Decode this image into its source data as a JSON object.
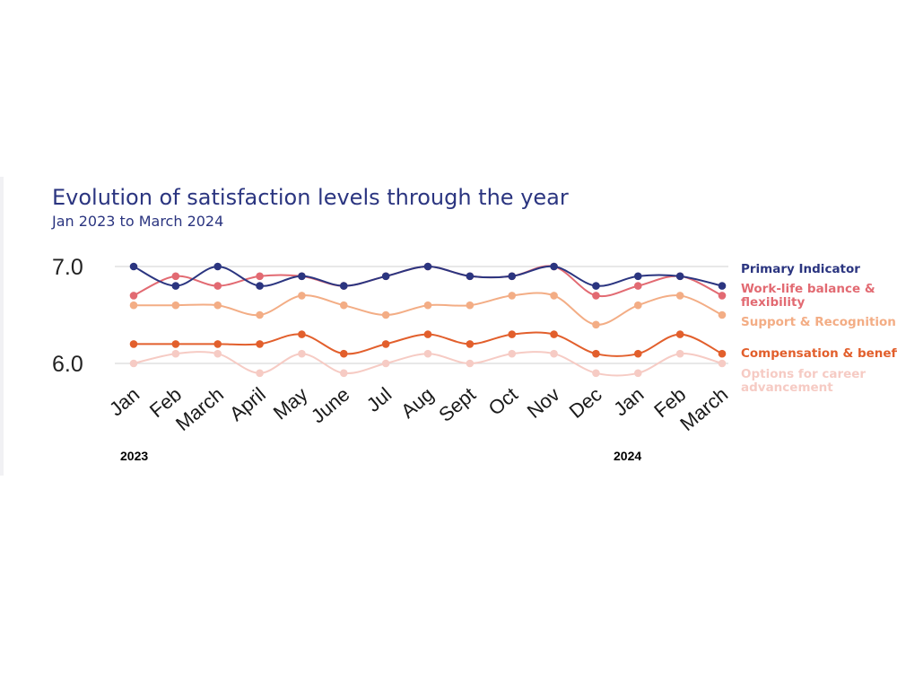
{
  "title": "Evolution of satisfaction levels through the year",
  "subtitle": "Jan 2023 to March 2024",
  "chart_data": {
    "type": "line",
    "categories": [
      "Jan",
      "Feb",
      "March",
      "April",
      "May",
      "June",
      "Jul",
      "Aug",
      "Sept",
      "Oct",
      "Nov",
      "Dec",
      "Jan",
      "Feb",
      "March"
    ],
    "year_labels": [
      "2023",
      "2024"
    ],
    "ylim": [
      6.0,
      7.0
    ],
    "y_ticks": [
      "6.0",
      "7.0"
    ],
    "grid": true,
    "legend_position": "right",
    "series": [
      {
        "name": "Options for career advancement",
        "color": "#f6cbc4",
        "values": [
          6.0,
          6.1,
          6.1,
          5.9,
          6.1,
          5.9,
          6.0,
          6.1,
          6.0,
          6.1,
          6.1,
          5.9,
          5.9,
          6.1,
          6.0
        ]
      },
      {
        "name": "Compensation & benefits",
        "color": "#e25f2c",
        "values": [
          6.2,
          6.2,
          6.2,
          6.2,
          6.3,
          6.1,
          6.2,
          6.3,
          6.2,
          6.3,
          6.3,
          6.1,
          6.1,
          6.3,
          6.1
        ]
      },
      {
        "name": "Support & Recognition",
        "color": "#f3ad85",
        "values": [
          6.6,
          6.6,
          6.6,
          6.5,
          6.7,
          6.6,
          6.5,
          6.6,
          6.6,
          6.7,
          6.7,
          6.4,
          6.6,
          6.7,
          6.5
        ]
      },
      {
        "name": "Work-life balance & flexibility",
        "color": "#e26a72",
        "values": [
          6.7,
          6.9,
          6.8,
          6.9,
          6.9,
          6.8,
          6.9,
          7.0,
          6.9,
          6.9,
          7.0,
          6.7,
          6.8,
          6.9,
          6.7
        ]
      },
      {
        "name": "Primary Indicator",
        "color": "#2b3580",
        "values": [
          7.0,
          6.8,
          7.0,
          6.8,
          6.9,
          6.8,
          6.9,
          7.0,
          6.9,
          6.9,
          7.0,
          6.8,
          6.9,
          6.9,
          6.8
        ]
      }
    ]
  }
}
